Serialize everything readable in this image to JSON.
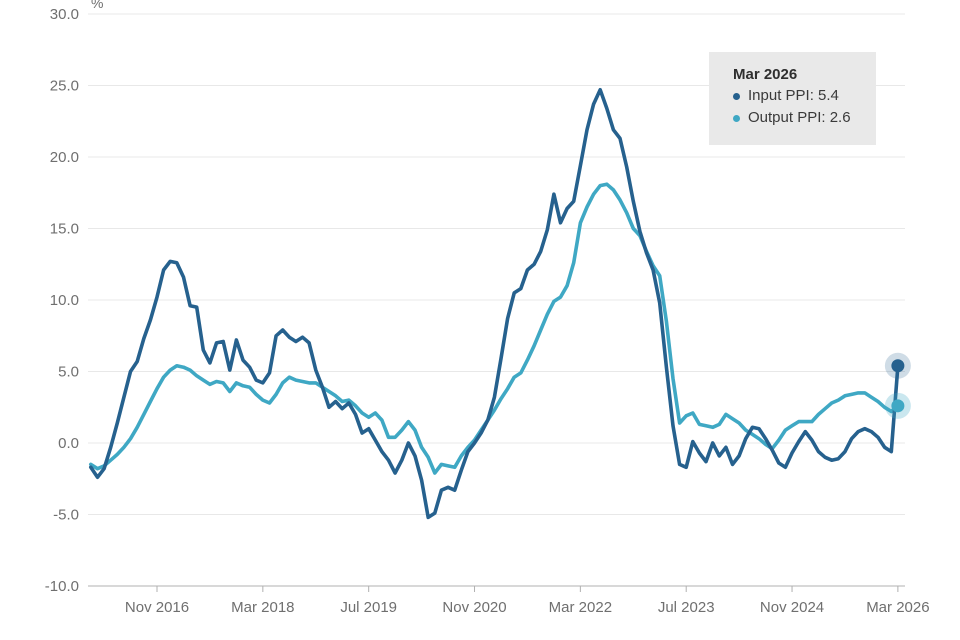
{
  "colors": {
    "background": "#ffffff",
    "grid": "#e8e8e8",
    "axis": "#b0b0b0",
    "tick_text": "#6f6f6f",
    "tooltip_bg": "#e9e9e9",
    "tooltip_title_text": "#2f2f2f",
    "tooltip_row_text": "#3a3a3a",
    "input_ppi": "#26618e",
    "output_ppi": "#3fa8c4",
    "input_halo": "rgba(38,97,142,0.22)",
    "output_halo": "rgba(63,168,196,0.28)"
  },
  "chart_data": {
    "type": "line",
    "title": "",
    "unit_label": "%",
    "grid": "horizontal-only",
    "y_axis": {
      "min": -10,
      "max": 30,
      "ticks": [
        {
          "label": "30.0",
          "value": 30
        },
        {
          "label": "25.0",
          "value": 25
        },
        {
          "label": "20.0",
          "value": 20
        },
        {
          "label": "15.0",
          "value": 15
        },
        {
          "label": "10.0",
          "value": 10
        },
        {
          "label": "5.0",
          "value": 5
        },
        {
          "label": "0.0",
          "value": 0
        },
        {
          "label": "-5.0",
          "value": -5
        },
        {
          "label": "-10.0",
          "value": -10
        }
      ]
    },
    "x_axis": {
      "start_month": "Jan 2016",
      "end_month": "Mar 2026",
      "months_total": 123,
      "ticks": [
        {
          "label": "Nov 2016",
          "monthIndex": 10
        },
        {
          "label": "Mar 2018",
          "monthIndex": 26
        },
        {
          "label": "Jul 2019",
          "monthIndex": 42
        },
        {
          "label": "Nov 2020",
          "monthIndex": 58
        },
        {
          "label": "Mar 2022",
          "monthIndex": 74
        },
        {
          "label": "Jul 2023",
          "monthIndex": 90
        },
        {
          "label": "Nov 2024",
          "monthIndex": 106
        },
        {
          "label": "Mar 2026",
          "monthIndex": 122
        }
      ]
    },
    "series": [
      {
        "name": "Output PPI",
        "color": "#3fa8c4",
        "halo": "rgba(63,168,196,0.28)",
        "values": [
          -1.5,
          -1.8,
          -1.6,
          -1.2,
          -0.8,
          -0.3,
          0.3,
          1.1,
          2.0,
          2.9,
          3.8,
          4.6,
          5.1,
          5.4,
          5.3,
          5.1,
          4.7,
          4.4,
          4.1,
          4.3,
          4.2,
          3.6,
          4.2,
          4.0,
          3.9,
          3.4,
          3.0,
          2.8,
          3.4,
          4.2,
          4.6,
          4.4,
          4.3,
          4.2,
          4.2,
          3.9,
          3.6,
          3.3,
          2.9,
          3.0,
          2.6,
          2.1,
          1.8,
          2.1,
          1.6,
          0.4,
          0.4,
          0.9,
          1.5,
          0.9,
          -0.3,
          -1.0,
          -2.1,
          -1.5,
          -1.6,
          -1.7,
          -0.9,
          -0.3,
          0.2,
          0.9,
          1.6,
          2.3,
          3.1,
          3.8,
          4.6,
          4.9,
          5.8,
          6.8,
          7.9,
          9.0,
          9.9,
          10.2,
          11.0,
          12.6,
          15.4,
          16.5,
          17.4,
          18.0,
          18.1,
          17.7,
          17.0,
          16.1,
          15.0,
          14.5,
          13.4,
          12.4,
          11.7,
          8.5,
          4.5,
          1.4,
          1.9,
          2.1,
          1.3,
          1.2,
          1.1,
          1.3,
          2.0,
          1.7,
          1.4,
          0.9,
          0.6,
          0.3,
          -0.1,
          -0.4,
          0.2,
          0.9,
          1.2,
          1.5,
          1.5,
          1.5,
          2.0,
          2.4,
          2.8,
          3.0,
          3.3,
          3.4,
          3.5,
          3.5,
          3.2,
          2.9,
          2.5,
          2.2,
          2.6
        ]
      },
      {
        "name": "Input PPI",
        "color": "#26618e",
        "halo": "rgba(38,97,142,0.22)",
        "values": [
          -1.7,
          -2.4,
          -1.8,
          -0.3,
          1.4,
          3.2,
          5.0,
          5.7,
          7.3,
          8.6,
          10.2,
          12.1,
          12.7,
          12.6,
          11.6,
          9.6,
          9.5,
          6.5,
          5.6,
          7.0,
          7.1,
          5.1,
          7.2,
          5.8,
          5.3,
          4.4,
          4.2,
          4.9,
          7.5,
          7.9,
          7.4,
          7.1,
          7.4,
          7.0,
          5.1,
          3.9,
          2.5,
          2.9,
          2.4,
          2.8,
          2.0,
          0.7,
          1.0,
          0.2,
          -0.6,
          -1.2,
          -2.1,
          -1.2,
          0.0,
          -0.9,
          -2.6,
          -5.2,
          -4.9,
          -3.3,
          -3.1,
          -3.3,
          -1.9,
          -0.6,
          0.0,
          0.7,
          1.6,
          3.2,
          5.9,
          8.7,
          10.5,
          10.8,
          12.1,
          12.5,
          13.4,
          14.9,
          17.4,
          15.4,
          16.4,
          16.9,
          19.4,
          21.9,
          23.7,
          24.7,
          23.4,
          21.9,
          21.3,
          19.3,
          16.9,
          14.8,
          13.3,
          12.1,
          9.8,
          5.3,
          1.2,
          -1.5,
          -1.7,
          0.1,
          -0.7,
          -1.3,
          0.0,
          -0.9,
          -0.3,
          -1.5,
          -0.9,
          0.3,
          1.1,
          1.0,
          0.3,
          -0.5,
          -1.4,
          -1.7,
          -0.7,
          0.1,
          0.8,
          0.2,
          -0.6,
          -1.0,
          -1.2,
          -1.1,
          -0.6,
          0.3,
          0.8,
          1.0,
          0.8,
          0.4,
          -0.3,
          -0.6,
          5.4
        ]
      }
    ],
    "tooltip": {
      "title": "Mar 2026",
      "rows": [
        {
          "series": "Input PPI",
          "value": "5.4",
          "text": "Input PPI: 5.4",
          "color": "#26618e"
        },
        {
          "series": "Output PPI",
          "value": "2.6",
          "text": "Output PPI: 2.6",
          "color": "#3fa8c4"
        }
      ]
    }
  }
}
